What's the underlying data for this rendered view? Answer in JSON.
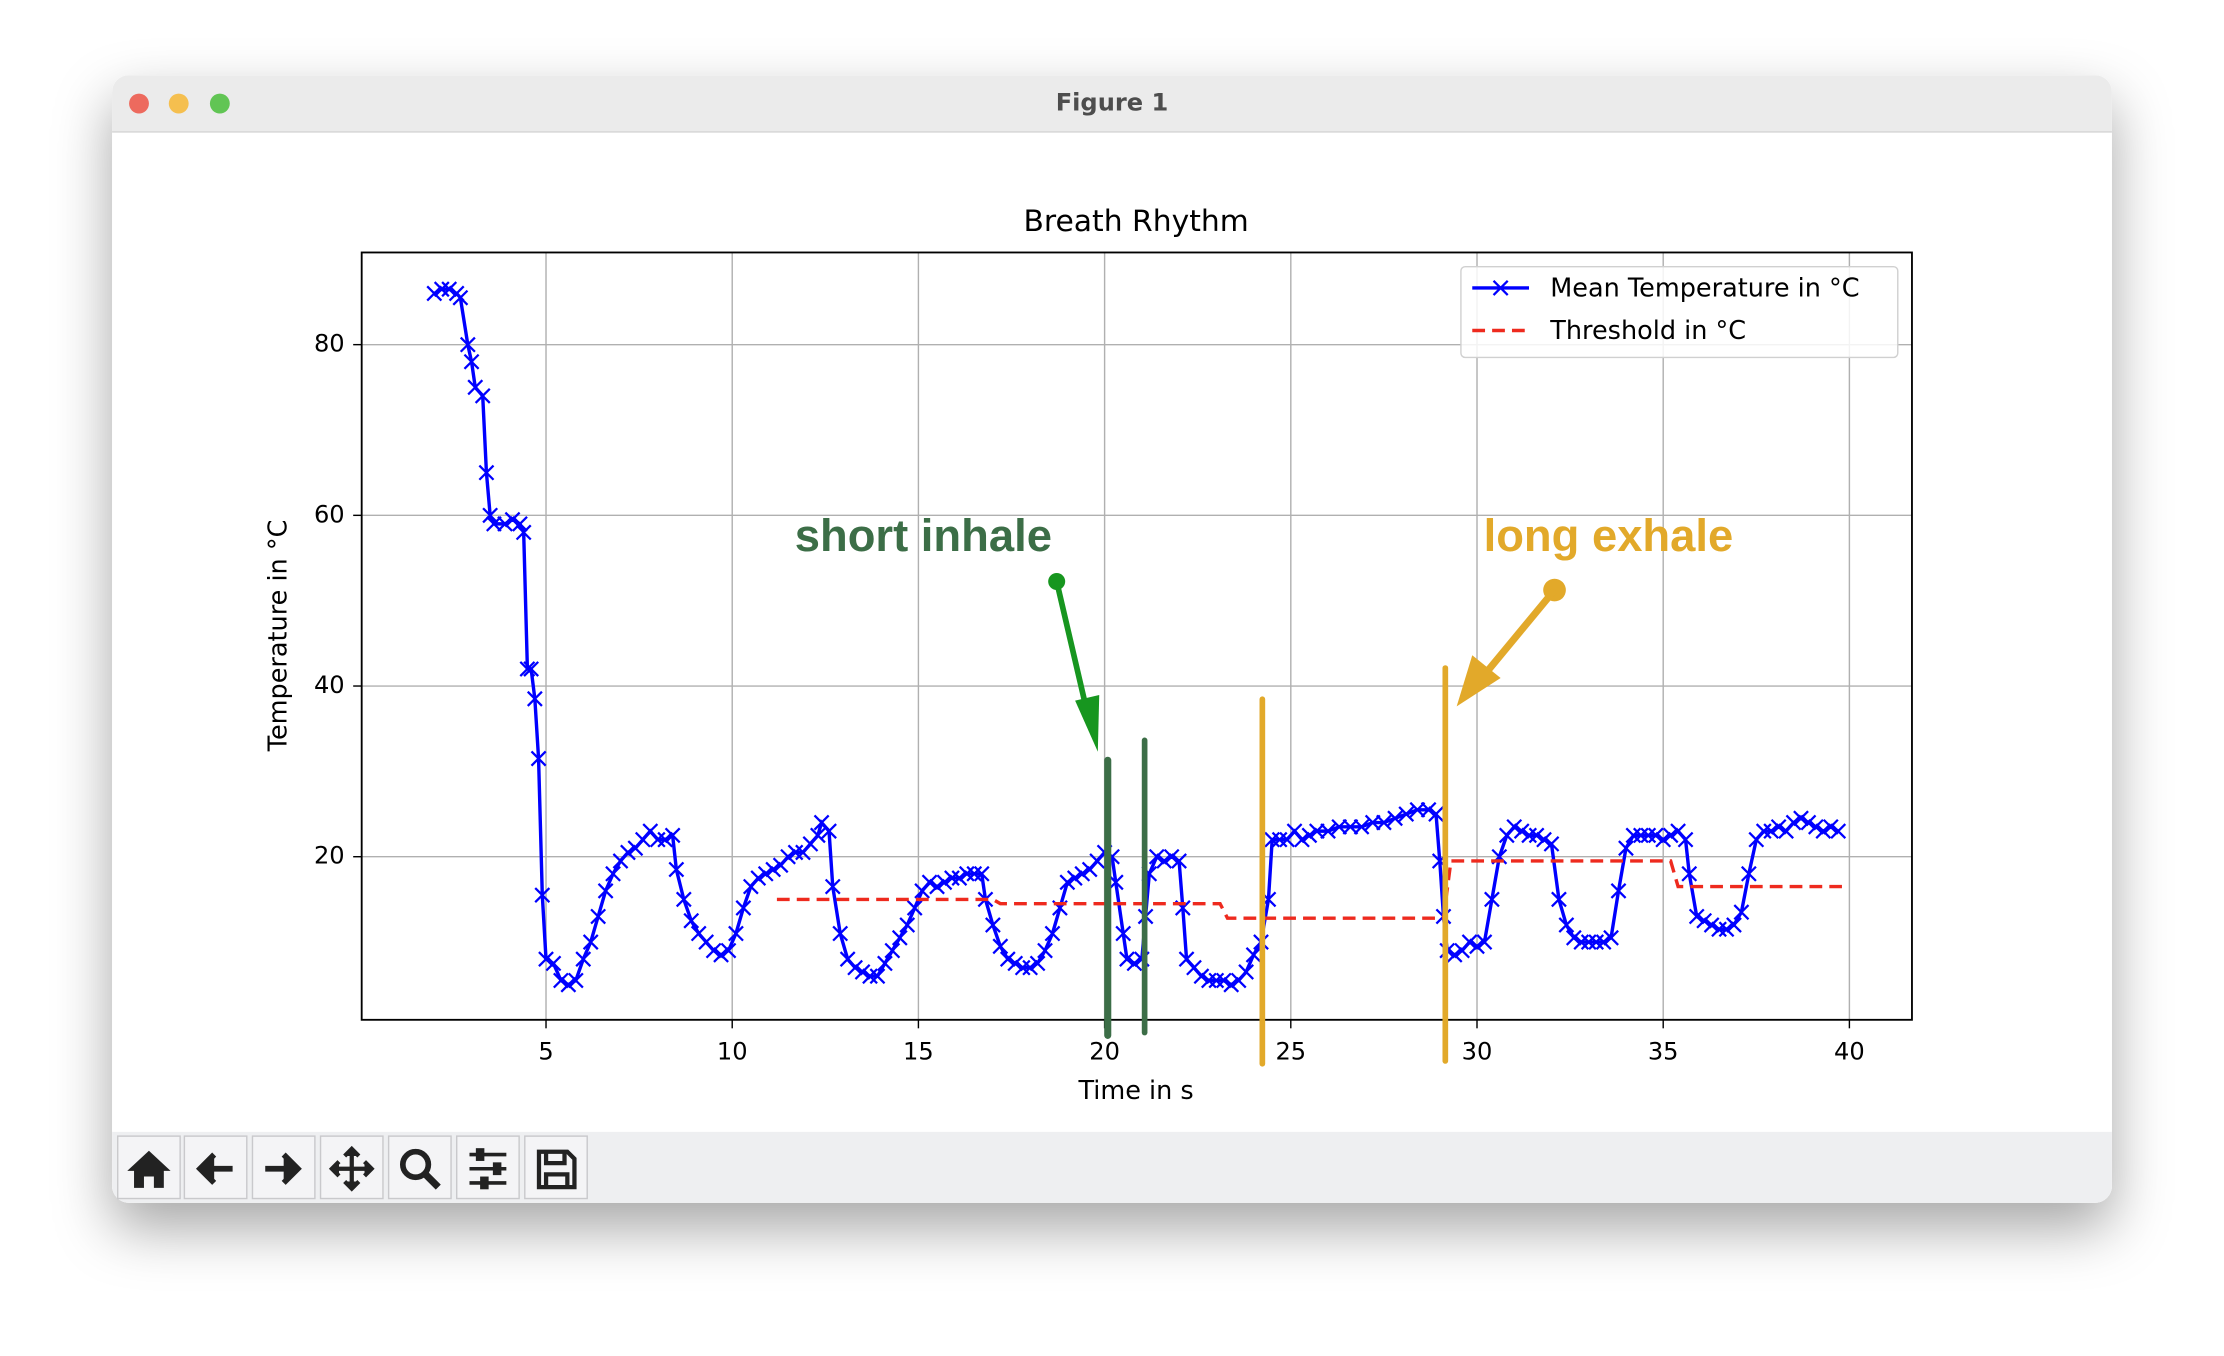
{
  "window": {
    "title": "Figure 1"
  },
  "chart_data": {
    "type": "line",
    "title": "Breath Rhythm",
    "x_label": "Time in s",
    "y_label": "Temperature in °C",
    "xlim": [
      0.05,
      41.68
    ],
    "ylim": [
      0.89,
      90.8
    ],
    "xticks": [
      5,
      10,
      15,
      20,
      25,
      30,
      35,
      40
    ],
    "yticks": [
      20,
      40,
      60,
      80
    ],
    "grid": true,
    "legend": "upper right",
    "series": [
      {
        "name": "Mean Temperature in °C",
        "color": "#0000ff",
        "marker": "x",
        "linestyle": "solid",
        "x": [
          2.0,
          2.2,
          2.4,
          2.6,
          2.7,
          2.9,
          3.0,
          3.1,
          3.3,
          3.4,
          3.5,
          3.6,
          3.9,
          4.1,
          4.3,
          4.4,
          4.5,
          4.6,
          4.7,
          4.8,
          4.9,
          5.0,
          5.2,
          5.4,
          5.6,
          5.8,
          6.0,
          6.2,
          6.4,
          6.6,
          6.8,
          7.0,
          7.2,
          7.4,
          7.6,
          7.8,
          8.0,
          8.2,
          8.4,
          8.5,
          8.7,
          8.9,
          9.1,
          9.3,
          9.5,
          9.7,
          9.9,
          10.1,
          10.3,
          10.5,
          10.7,
          10.9,
          11.1,
          11.3,
          11.5,
          11.7,
          11.9,
          12.1,
          12.3,
          12.4,
          12.6,
          12.7,
          12.9,
          13.1,
          13.3,
          13.5,
          13.7,
          13.9,
          14.1,
          14.3,
          14.5,
          14.7,
          14.9,
          15.1,
          15.3,
          15.5,
          15.7,
          15.9,
          16.1,
          16.3,
          16.5,
          16.7,
          16.8,
          17.0,
          17.2,
          17.4,
          17.6,
          17.8,
          18.0,
          18.2,
          18.4,
          18.6,
          18.8,
          19.0,
          19.2,
          19.4,
          19.6,
          19.8,
          20.0,
          20.2,
          20.3,
          20.5,
          20.6,
          20.8,
          21.0,
          21.1,
          21.2,
          21.4,
          21.6,
          21.8,
          22.0,
          22.1,
          22.2,
          22.4,
          22.6,
          22.8,
          23.0,
          23.2,
          23.4,
          23.6,
          23.8,
          24.0,
          24.2,
          24.4,
          24.5,
          24.7,
          24.9,
          25.1,
          25.3,
          25.5,
          25.7,
          26.0,
          26.3,
          26.6,
          26.9,
          27.2,
          27.5,
          27.8,
          28.1,
          28.4,
          28.7,
          28.9,
          29.0,
          29.1,
          29.2,
          29.4,
          29.6,
          29.8,
          30.0,
          30.2,
          30.4,
          30.6,
          30.8,
          31.0,
          31.2,
          31.4,
          31.6,
          31.8,
          32.0,
          32.2,
          32.4,
          32.6,
          32.8,
          33.0,
          33.2,
          33.4,
          33.6,
          33.8,
          34.0,
          34.2,
          34.4,
          34.6,
          34.8,
          35.0,
          35.2,
          35.4,
          35.6,
          35.7,
          35.9,
          36.1,
          36.3,
          36.5,
          36.7,
          36.9,
          37.1,
          37.3,
          37.5,
          37.7,
          37.9,
          38.1,
          38.3,
          38.5,
          38.7,
          38.9,
          39.1,
          39.3,
          39.5,
          39.7
        ],
        "values": [
          86,
          86.5,
          86.5,
          86,
          85.5,
          80,
          78,
          75,
          74,
          65,
          60,
          59,
          59,
          59.5,
          59,
          58,
          42,
          42,
          38.5,
          31.5,
          15.5,
          8,
          7.5,
          5.5,
          5,
          5.5,
          8,
          10,
          13,
          16,
          18,
          19.5,
          20.5,
          21,
          22,
          23,
          22,
          22,
          22.5,
          18.5,
          15,
          12.5,
          11,
          10,
          9,
          8.5,
          9,
          11,
          14,
          16.5,
          17.5,
          18,
          18.5,
          19,
          20,
          20.5,
          20.5,
          21.5,
          22.5,
          24,
          23,
          16.5,
          11,
          8,
          7,
          6.5,
          6,
          6,
          7.5,
          9,
          10.5,
          12,
          14,
          16,
          17,
          16.5,
          17,
          17.5,
          17.5,
          18,
          18,
          18,
          15,
          12,
          9.5,
          8,
          7.5,
          7,
          7,
          7.5,
          9,
          11,
          14,
          17,
          17.5,
          18,
          18.5,
          19.5,
          20.5,
          20,
          17,
          11,
          8,
          7.5,
          8,
          13,
          18,
          20,
          19.5,
          20,
          19.5,
          14,
          8,
          7,
          6,
          5.5,
          5.5,
          5.5,
          5,
          5.5,
          6.5,
          8.5,
          10,
          15,
          22,
          22,
          22,
          23,
          22,
          22.5,
          23,
          23,
          23.5,
          23.5,
          23.5,
          24,
          24,
          24.5,
          25,
          25.5,
          25.5,
          25,
          19.5,
          13,
          9,
          8.5,
          9,
          10,
          9.5,
          10,
          15,
          20,
          22.5,
          23.5,
          23,
          22.5,
          22.5,
          22,
          21.5,
          15,
          12,
          10.5,
          10,
          10,
          10,
          10,
          10.5,
          16,
          21,
          22.5,
          22.5,
          22.5,
          22.5,
          22,
          22.5,
          23,
          22,
          18,
          13,
          12.5,
          12,
          11.5,
          11.5,
          12,
          13.5,
          18,
          22,
          23,
          23,
          23.5,
          23,
          24,
          24.5,
          24,
          23.5,
          23,
          23.5,
          23
        ]
      },
      {
        "name": "Threshold in °C",
        "color": "#ee2a1e",
        "linestyle": "dashed",
        "x": [
          11.2,
          17.0,
          17.2,
          23.1,
          23.3,
          29.1,
          29.3,
          35.2,
          35.4,
          39.8
        ],
        "values": [
          15,
          15,
          14.5,
          14.5,
          12.8,
          12.8,
          19.5,
          19.5,
          16.5,
          16.5
        ]
      }
    ],
    "annotations": [
      {
        "text": "short inhale",
        "color": "#3c6e47"
      },
      {
        "text": "long exhale",
        "color": "#e2a92a"
      }
    ]
  }
}
